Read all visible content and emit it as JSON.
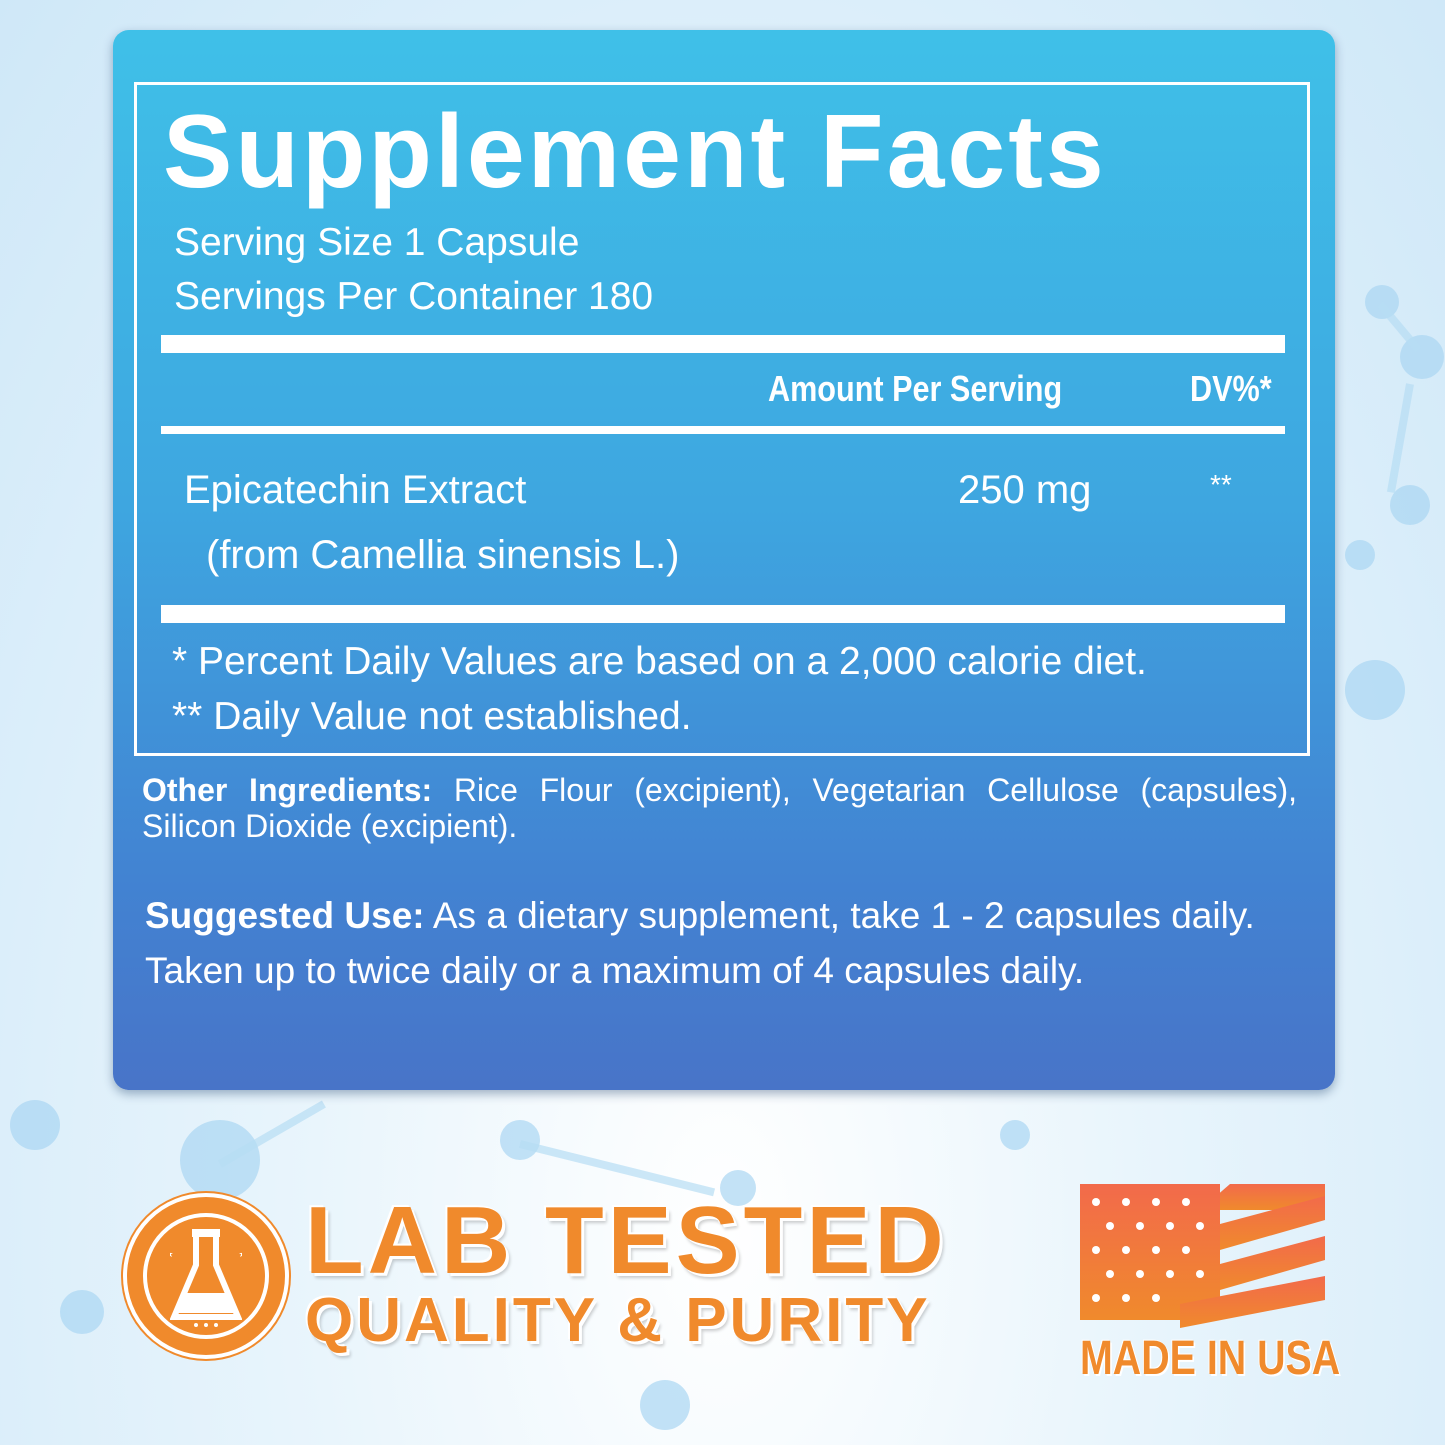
{
  "label": {
    "title": "Supplement Facts",
    "serving_size": "Serving Size 1 Capsule",
    "servings_per_container": "Servings Per Container 180",
    "header": {
      "amount": "Amount Per Serving",
      "dv": "DV%*"
    },
    "ingredients": [
      {
        "name": "Epicatechin Extract",
        "source": "(from Camellia sinensis L.)",
        "amount": "250 mg",
        "dv": "**"
      }
    ],
    "footnotes": [
      "* Percent Daily Values are based on a 2,000 calorie diet.",
      "** Daily Value not established."
    ]
  },
  "other_ingredients": {
    "label": "Other Ingredients:",
    "text": " Rice Flour (excipient), Vegetarian Cellulose (capsules), Silicon Dioxide (excipient)."
  },
  "suggested_use": {
    "label": "Suggested Use:",
    "text": " As a dietary supplement, take 1 - 2 capsules daily. Taken up to twice daily or a maximum of 4 capsules daily."
  },
  "badges": {
    "lab_tested": "LAB TESTED",
    "quality": "QUALITY & PURITY",
    "made_in": "MADE IN USA"
  },
  "colors": {
    "panel_top": "#3fc0e8",
    "panel_bottom": "#4874c8",
    "accent_orange": "#f08a2c",
    "flag_red": "#f26a4b"
  },
  "icons": [
    "flask-icon",
    "us-flag-icon"
  ]
}
